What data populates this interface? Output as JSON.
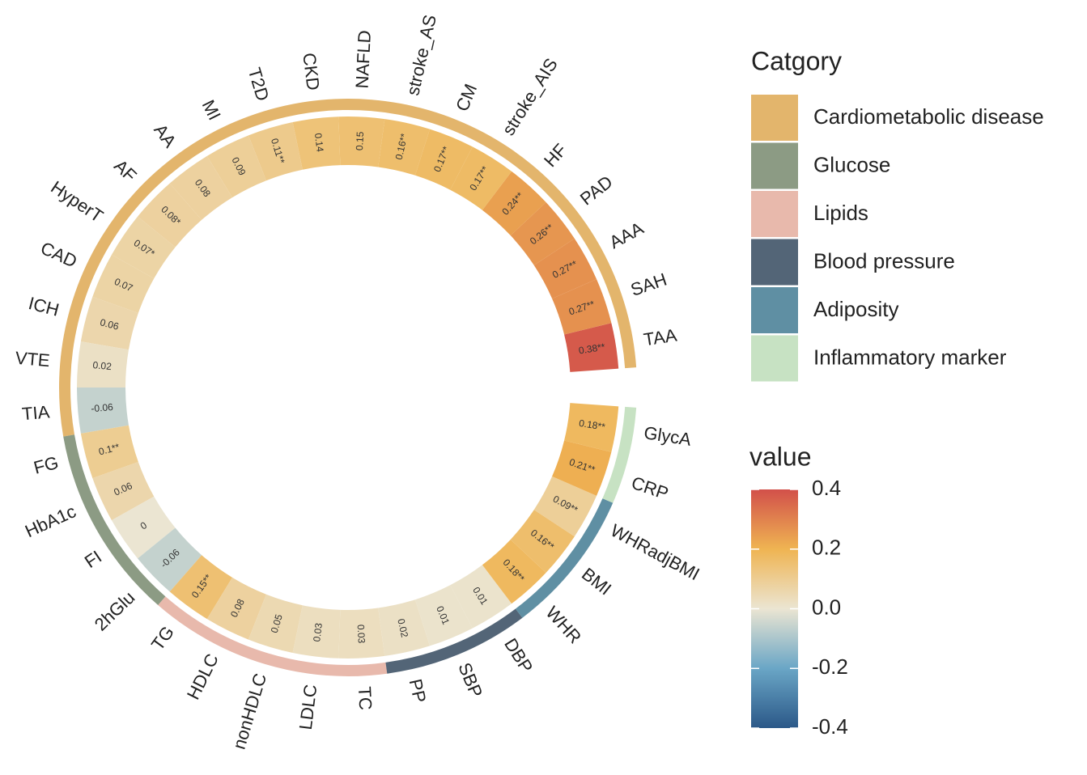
{
  "chart_data": {
    "type": "circular_heatmap",
    "legend_title": "Catgory",
    "series": [
      {
        "name": "Cardiometabolic disease",
        "color": "#e3b56c",
        "categories": [
          "TAA",
          "SAH",
          "AAA",
          "PAD",
          "HF",
          "stroke_AIS",
          "CM",
          "stroke_AS",
          "NAFLD",
          "CKD",
          "T2D",
          "MI",
          "AA",
          "AF",
          "HyperT",
          "CAD",
          "ICH",
          "VTE",
          "TIA"
        ],
        "values": [
          0.38,
          0.27,
          0.27,
          0.26,
          0.24,
          0.17,
          0.17,
          0.16,
          0.15,
          0.14,
          0.11,
          0.09,
          0.08,
          0.08,
          0.07,
          0.07,
          0.06,
          0.02,
          -0.06
        ],
        "value_labels": [
          "0.38**",
          "0.27**",
          "0.27**",
          "0.26**",
          "0.24**",
          "0.17**",
          "0.17**",
          "0.16**",
          "0.15",
          "0.14",
          "0.11**",
          "0.09",
          "0.08",
          "0.08*",
          "0.07*",
          "0.07",
          "0.06",
          "0.02",
          "-0.06"
        ]
      },
      {
        "name": "Glucose",
        "color": "#8c9b84",
        "categories": [
          "FG",
          "HbA1c",
          "FI",
          "2hGlu"
        ],
        "values": [
          0.1,
          0.06,
          0,
          -0.06
        ],
        "value_labels": [
          "0.1**",
          "0.06",
          "0",
          "-0.06"
        ]
      },
      {
        "name": "Lipids",
        "color": "#e8b9ac",
        "categories": [
          "TG",
          "HDLC",
          "nonHDLC",
          "LDLC",
          "TC"
        ],
        "values": [
          0.15,
          0.08,
          0.05,
          0.03,
          0.03
        ],
        "value_labels": [
          "0.15**",
          "0.08",
          "0.05",
          "0.03",
          "0.03"
        ]
      },
      {
        "name": "Blood pressure",
        "color": "#536577",
        "categories": [
          "PP",
          "SBP",
          "DBP"
        ],
        "values": [
          0.02,
          0.01,
          0.01
        ],
        "value_labels": [
          "0.02",
          "0.01",
          "0.01"
        ]
      },
      {
        "name": "Adiposity",
        "color": "#5f8fa3",
        "categories": [
          "WHR",
          "BMI",
          "WHRadjBMI"
        ],
        "values": [
          0.18,
          0.16,
          0.09
        ],
        "value_labels": [
          "0.18**",
          "0.16**",
          "0.09**"
        ]
      },
      {
        "name": "Inflammatory marker",
        "color": "#c7e2c3",
        "categories": [
          "CRP",
          "GlycA"
        ],
        "values": [
          0.21,
          0.18
        ],
        "value_labels": [
          "0.21**",
          "0.18**"
        ]
      }
    ],
    "colorbar": {
      "title": "value",
      "lim": [
        -0.4,
        0.4
      ],
      "ticks": [
        0.4,
        0.2,
        {
          "value": 0,
          "label": "0.0"
        },
        -0.2,
        -0.4
      ],
      "colorscale": [
        {
          "value": -0.4,
          "color": "#2b5888"
        },
        {
          "value": -0.2,
          "color": "#6aa6c6"
        },
        {
          "value": 0,
          "color": "#ebe5d2"
        },
        {
          "value": 0.2,
          "color": "#efb452"
        },
        {
          "value": 0.4,
          "color": "#d2504a"
        }
      ]
    }
  }
}
